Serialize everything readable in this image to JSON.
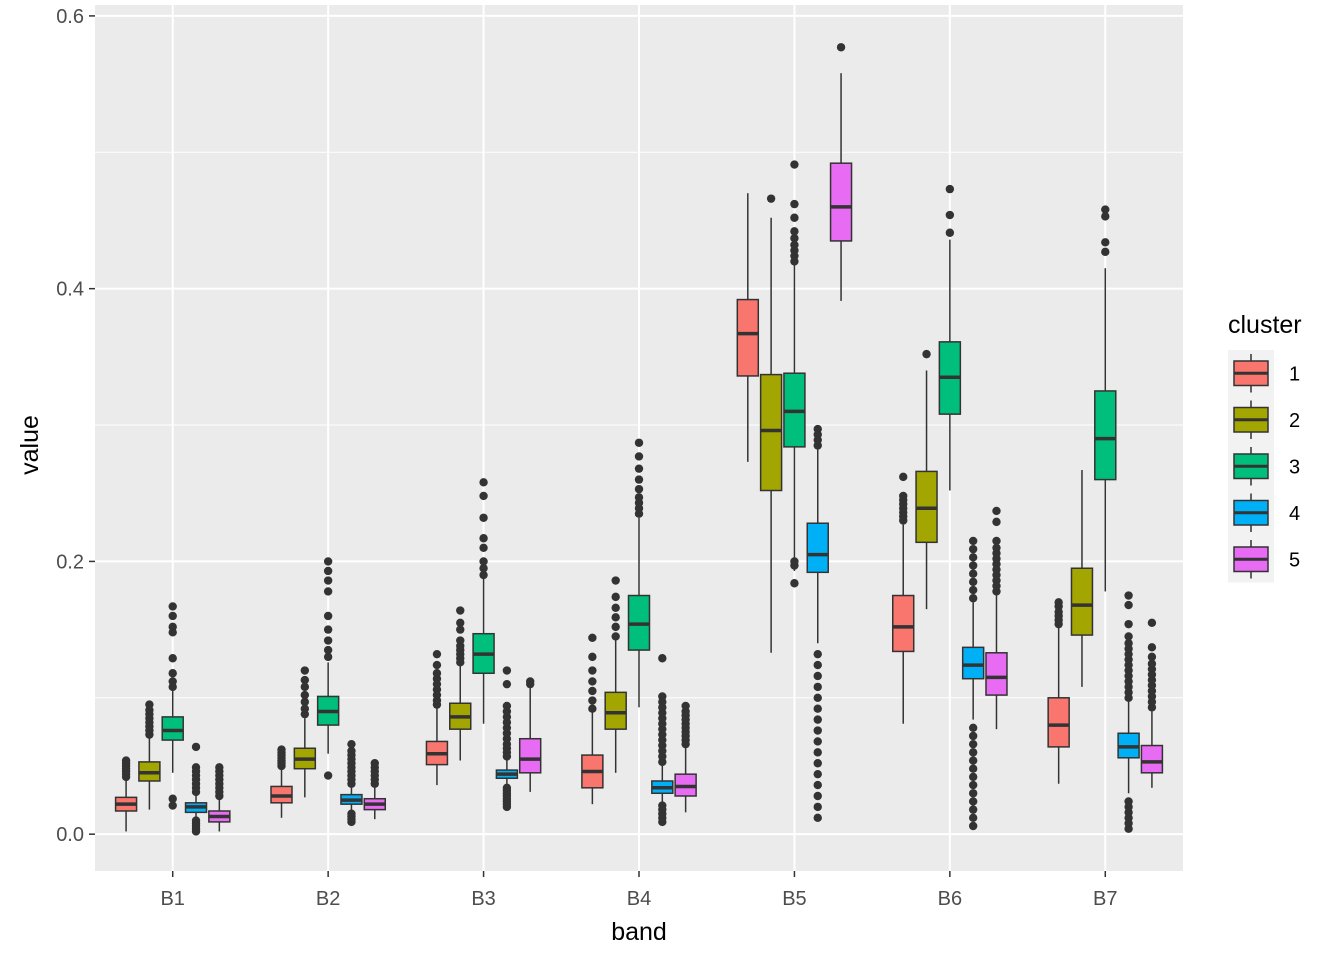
{
  "chart_data": {
    "type": "boxplot",
    "xlabel": "band",
    "ylabel": "value",
    "categories": [
      "B1",
      "B2",
      "B3",
      "B4",
      "B5",
      "B6",
      "B7"
    ],
    "ylim": [
      -0.027,
      0.608
    ],
    "yticks": [
      0.0,
      0.2,
      0.4,
      0.6
    ],
    "ytick_labels": [
      "0.0",
      "0.2",
      "0.4",
      "0.6"
    ],
    "grid": true,
    "legend": {
      "title": "cluster",
      "position": "right"
    },
    "series": [
      {
        "name": "1",
        "color": "#F8766D",
        "boxes": [
          {
            "q1": 0.017,
            "median": 0.022,
            "q3": 0.027,
            "lo": 0.002,
            "hi": 0.041,
            "outliers": [
              0.042,
              0.044,
              0.046,
              0.048,
              0.05,
              0.052,
              0.054
            ]
          },
          {
            "q1": 0.023,
            "median": 0.028,
            "q3": 0.035,
            "lo": 0.012,
            "hi": 0.049,
            "outliers": [
              0.05,
              0.052,
              0.054,
              0.056,
              0.058,
              0.06,
              0.062
            ]
          },
          {
            "q1": 0.051,
            "median": 0.059,
            "q3": 0.068,
            "lo": 0.036,
            "hi": 0.093,
            "outliers": [
              0.095,
              0.098,
              0.102,
              0.106,
              0.11,
              0.114,
              0.118,
              0.124,
              0.132
            ]
          },
          {
            "q1": 0.034,
            "median": 0.046,
            "q3": 0.058,
            "lo": 0.022,
            "hi": 0.09,
            "outliers": [
              0.092,
              0.098,
              0.105,
              0.112,
              0.12,
              0.13,
              0.144
            ]
          },
          {
            "q1": 0.336,
            "median": 0.367,
            "q3": 0.392,
            "lo": 0.273,
            "hi": 0.47,
            "outliers": []
          },
          {
            "q1": 0.134,
            "median": 0.152,
            "q3": 0.175,
            "lo": 0.081,
            "hi": 0.227,
            "outliers": [
              0.23,
              0.233,
              0.236,
              0.239,
              0.242,
              0.245,
              0.248,
              0.262
            ]
          },
          {
            "q1": 0.064,
            "median": 0.08,
            "q3": 0.1,
            "lo": 0.037,
            "hi": 0.152,
            "outliers": [
              0.154,
              0.157,
              0.16,
              0.163,
              0.167,
              0.17
            ]
          }
        ]
      },
      {
        "name": "2",
        "color": "#A3A500",
        "boxes": [
          {
            "q1": 0.039,
            "median": 0.045,
            "q3": 0.053,
            "lo": 0.018,
            "hi": 0.071,
            "outliers": [
              0.073,
              0.076,
              0.079,
              0.082,
              0.085,
              0.088,
              0.091,
              0.095
            ]
          },
          {
            "q1": 0.048,
            "median": 0.055,
            "q3": 0.063,
            "lo": 0.027,
            "hi": 0.085,
            "outliers": [
              0.088,
              0.092,
              0.097,
              0.102,
              0.108,
              0.113,
              0.12
            ]
          },
          {
            "q1": 0.077,
            "median": 0.086,
            "q3": 0.096,
            "lo": 0.054,
            "hi": 0.124,
            "outliers": [
              0.126,
              0.129,
              0.132,
              0.135,
              0.138,
              0.142,
              0.15,
              0.155,
              0.164
            ]
          },
          {
            "q1": 0.077,
            "median": 0.089,
            "q3": 0.104,
            "lo": 0.045,
            "hi": 0.142,
            "outliers": [
              0.145,
              0.152,
              0.159,
              0.166,
              0.174,
              0.186
            ]
          },
          {
            "q1": 0.252,
            "median": 0.296,
            "q3": 0.337,
            "lo": 0.133,
            "hi": 0.452,
            "outliers": [
              0.466
            ]
          },
          {
            "q1": 0.214,
            "median": 0.239,
            "q3": 0.266,
            "lo": 0.165,
            "hi": 0.34,
            "outliers": [
              0.352
            ]
          },
          {
            "q1": 0.146,
            "median": 0.168,
            "q3": 0.195,
            "lo": 0.108,
            "hi": 0.267,
            "outliers": []
          }
        ]
      },
      {
        "name": "3",
        "color": "#00BF7D",
        "boxes": [
          {
            "q1": 0.069,
            "median": 0.076,
            "q3": 0.086,
            "lo": 0.045,
            "hi": 0.105,
            "outliers": [
              0.021,
              0.026,
              0.108,
              0.112,
              0.118,
              0.129,
              0.148,
              0.152,
              0.16,
              0.167
            ]
          },
          {
            "q1": 0.08,
            "median": 0.09,
            "q3": 0.101,
            "lo": 0.059,
            "hi": 0.126,
            "outliers": [
              0.043,
              0.13,
              0.135,
              0.142,
              0.15,
              0.16,
              0.178,
              0.186,
              0.193,
              0.2
            ]
          },
          {
            "q1": 0.118,
            "median": 0.132,
            "q3": 0.147,
            "lo": 0.081,
            "hi": 0.188,
            "outliers": [
              0.19,
              0.195,
              0.2,
              0.21,
              0.217,
              0.232,
              0.248,
              0.258
            ]
          },
          {
            "q1": 0.135,
            "median": 0.154,
            "q3": 0.175,
            "lo": 0.093,
            "hi": 0.232,
            "outliers": [
              0.235,
              0.239,
              0.243,
              0.247,
              0.253,
              0.26,
              0.268,
              0.277,
              0.287
            ]
          },
          {
            "q1": 0.284,
            "median": 0.31,
            "q3": 0.338,
            "lo": 0.193,
            "hi": 0.417,
            "outliers": [
              0.184,
              0.197,
              0.2,
              0.42,
              0.424,
              0.428,
              0.432,
              0.437,
              0.442,
              0.452,
              0.462,
              0.491
            ]
          },
          {
            "q1": 0.308,
            "median": 0.335,
            "q3": 0.361,
            "lo": 0.252,
            "hi": 0.436,
            "outliers": [
              0.441,
              0.454,
              0.473
            ]
          },
          {
            "q1": 0.26,
            "median": 0.29,
            "q3": 0.325,
            "lo": 0.178,
            "hi": 0.415,
            "outliers": [
              0.427,
              0.434,
              0.453,
              0.458
            ]
          }
        ]
      },
      {
        "name": "4",
        "color": "#00B0F6",
        "boxes": [
          {
            "q1": 0.016,
            "median": 0.02,
            "q3": 0.023,
            "lo": 0.012,
            "hi": 0.029,
            "outliers": [
              0.002,
              0.004,
              0.006,
              0.008,
              0.01,
              0.031,
              0.034,
              0.037,
              0.04,
              0.043,
              0.046,
              0.049,
              0.064
            ]
          },
          {
            "q1": 0.022,
            "median": 0.025,
            "q3": 0.029,
            "lo": 0.017,
            "hi": 0.035,
            "outliers": [
              0.009,
              0.011,
              0.013,
              0.015,
              0.037,
              0.04,
              0.043,
              0.046,
              0.049,
              0.052,
              0.055,
              0.058,
              0.061,
              0.066
            ]
          },
          {
            "q1": 0.041,
            "median": 0.044,
            "q3": 0.047,
            "lo": 0.036,
            "hi": 0.055,
            "outliers": [
              0.02,
              0.022,
              0.024,
              0.026,
              0.028,
              0.03,
              0.032,
              0.034,
              0.057,
              0.06,
              0.063,
              0.066,
              0.07,
              0.074,
              0.078,
              0.082,
              0.086,
              0.09,
              0.094,
              0.11,
              0.12
            ]
          },
          {
            "q1": 0.03,
            "median": 0.034,
            "q3": 0.039,
            "lo": 0.023,
            "hi": 0.051,
            "outliers": [
              0.009,
              0.012,
              0.015,
              0.018,
              0.021,
              0.053,
              0.057,
              0.061,
              0.065,
              0.069,
              0.073,
              0.077,
              0.081,
              0.085,
              0.089,
              0.093,
              0.097,
              0.101,
              0.129
            ]
          },
          {
            "q1": 0.192,
            "median": 0.205,
            "q3": 0.228,
            "lo": 0.14,
            "hi": 0.282,
            "outliers": [
              0.012,
              0.02,
              0.028,
              0.036,
              0.044,
              0.052,
              0.06,
              0.068,
              0.076,
              0.084,
              0.092,
              0.1,
              0.108,
              0.116,
              0.124,
              0.132,
              0.285,
              0.289,
              0.293,
              0.297
            ]
          },
          {
            "q1": 0.114,
            "median": 0.124,
            "q3": 0.137,
            "lo": 0.084,
            "hi": 0.17,
            "outliers": [
              0.006,
              0.012,
              0.018,
              0.024,
              0.03,
              0.036,
              0.042,
              0.048,
              0.054,
              0.06,
              0.066,
              0.072,
              0.078,
              0.173,
              0.179,
              0.185,
              0.191,
              0.197,
              0.203,
              0.209,
              0.215
            ]
          },
          {
            "q1": 0.056,
            "median": 0.064,
            "q3": 0.074,
            "lo": 0.03,
            "hi": 0.098,
            "outliers": [
              0.004,
              0.008,
              0.012,
              0.016,
              0.02,
              0.024,
              0.1,
              0.104,
              0.108,
              0.112,
              0.116,
              0.12,
              0.124,
              0.128,
              0.132,
              0.136,
              0.14,
              0.145,
              0.154,
              0.168,
              0.175
            ]
          }
        ]
      },
      {
        "name": "5",
        "color": "#E76BF3",
        "boxes": [
          {
            "q1": 0.009,
            "median": 0.013,
            "q3": 0.017,
            "lo": 0.002,
            "hi": 0.026,
            "outliers": [
              0.028,
              0.031,
              0.034,
              0.037,
              0.04,
              0.043,
              0.046,
              0.049
            ]
          },
          {
            "q1": 0.018,
            "median": 0.022,
            "q3": 0.026,
            "lo": 0.011,
            "hi": 0.035,
            "outliers": [
              0.037,
              0.04,
              0.043,
              0.046,
              0.049,
              0.052
            ]
          },
          {
            "q1": 0.045,
            "median": 0.055,
            "q3": 0.07,
            "lo": 0.031,
            "hi": 0.108,
            "outliers": [
              0.11,
              0.112
            ]
          },
          {
            "q1": 0.028,
            "median": 0.035,
            "q3": 0.044,
            "lo": 0.016,
            "hi": 0.064,
            "outliers": [
              0.066,
              0.069,
              0.072,
              0.075,
              0.078,
              0.081,
              0.084,
              0.087,
              0.09,
              0.094
            ]
          },
          {
            "q1": 0.435,
            "median": 0.46,
            "q3": 0.492,
            "lo": 0.391,
            "hi": 0.558,
            "outliers": [
              0.577
            ]
          },
          {
            "q1": 0.102,
            "median": 0.115,
            "q3": 0.133,
            "lo": 0.077,
            "hi": 0.175,
            "outliers": [
              0.178,
              0.182,
              0.186,
              0.19,
              0.194,
              0.198,
              0.202,
              0.206,
              0.21,
              0.215,
              0.229,
              0.237
            ]
          },
          {
            "q1": 0.045,
            "median": 0.053,
            "q3": 0.065,
            "lo": 0.034,
            "hi": 0.09,
            "outliers": [
              0.093,
              0.097,
              0.101,
              0.105,
              0.109,
              0.113,
              0.117,
              0.121,
              0.125,
              0.13,
              0.137,
              0.155
            ]
          }
        ]
      }
    ]
  }
}
